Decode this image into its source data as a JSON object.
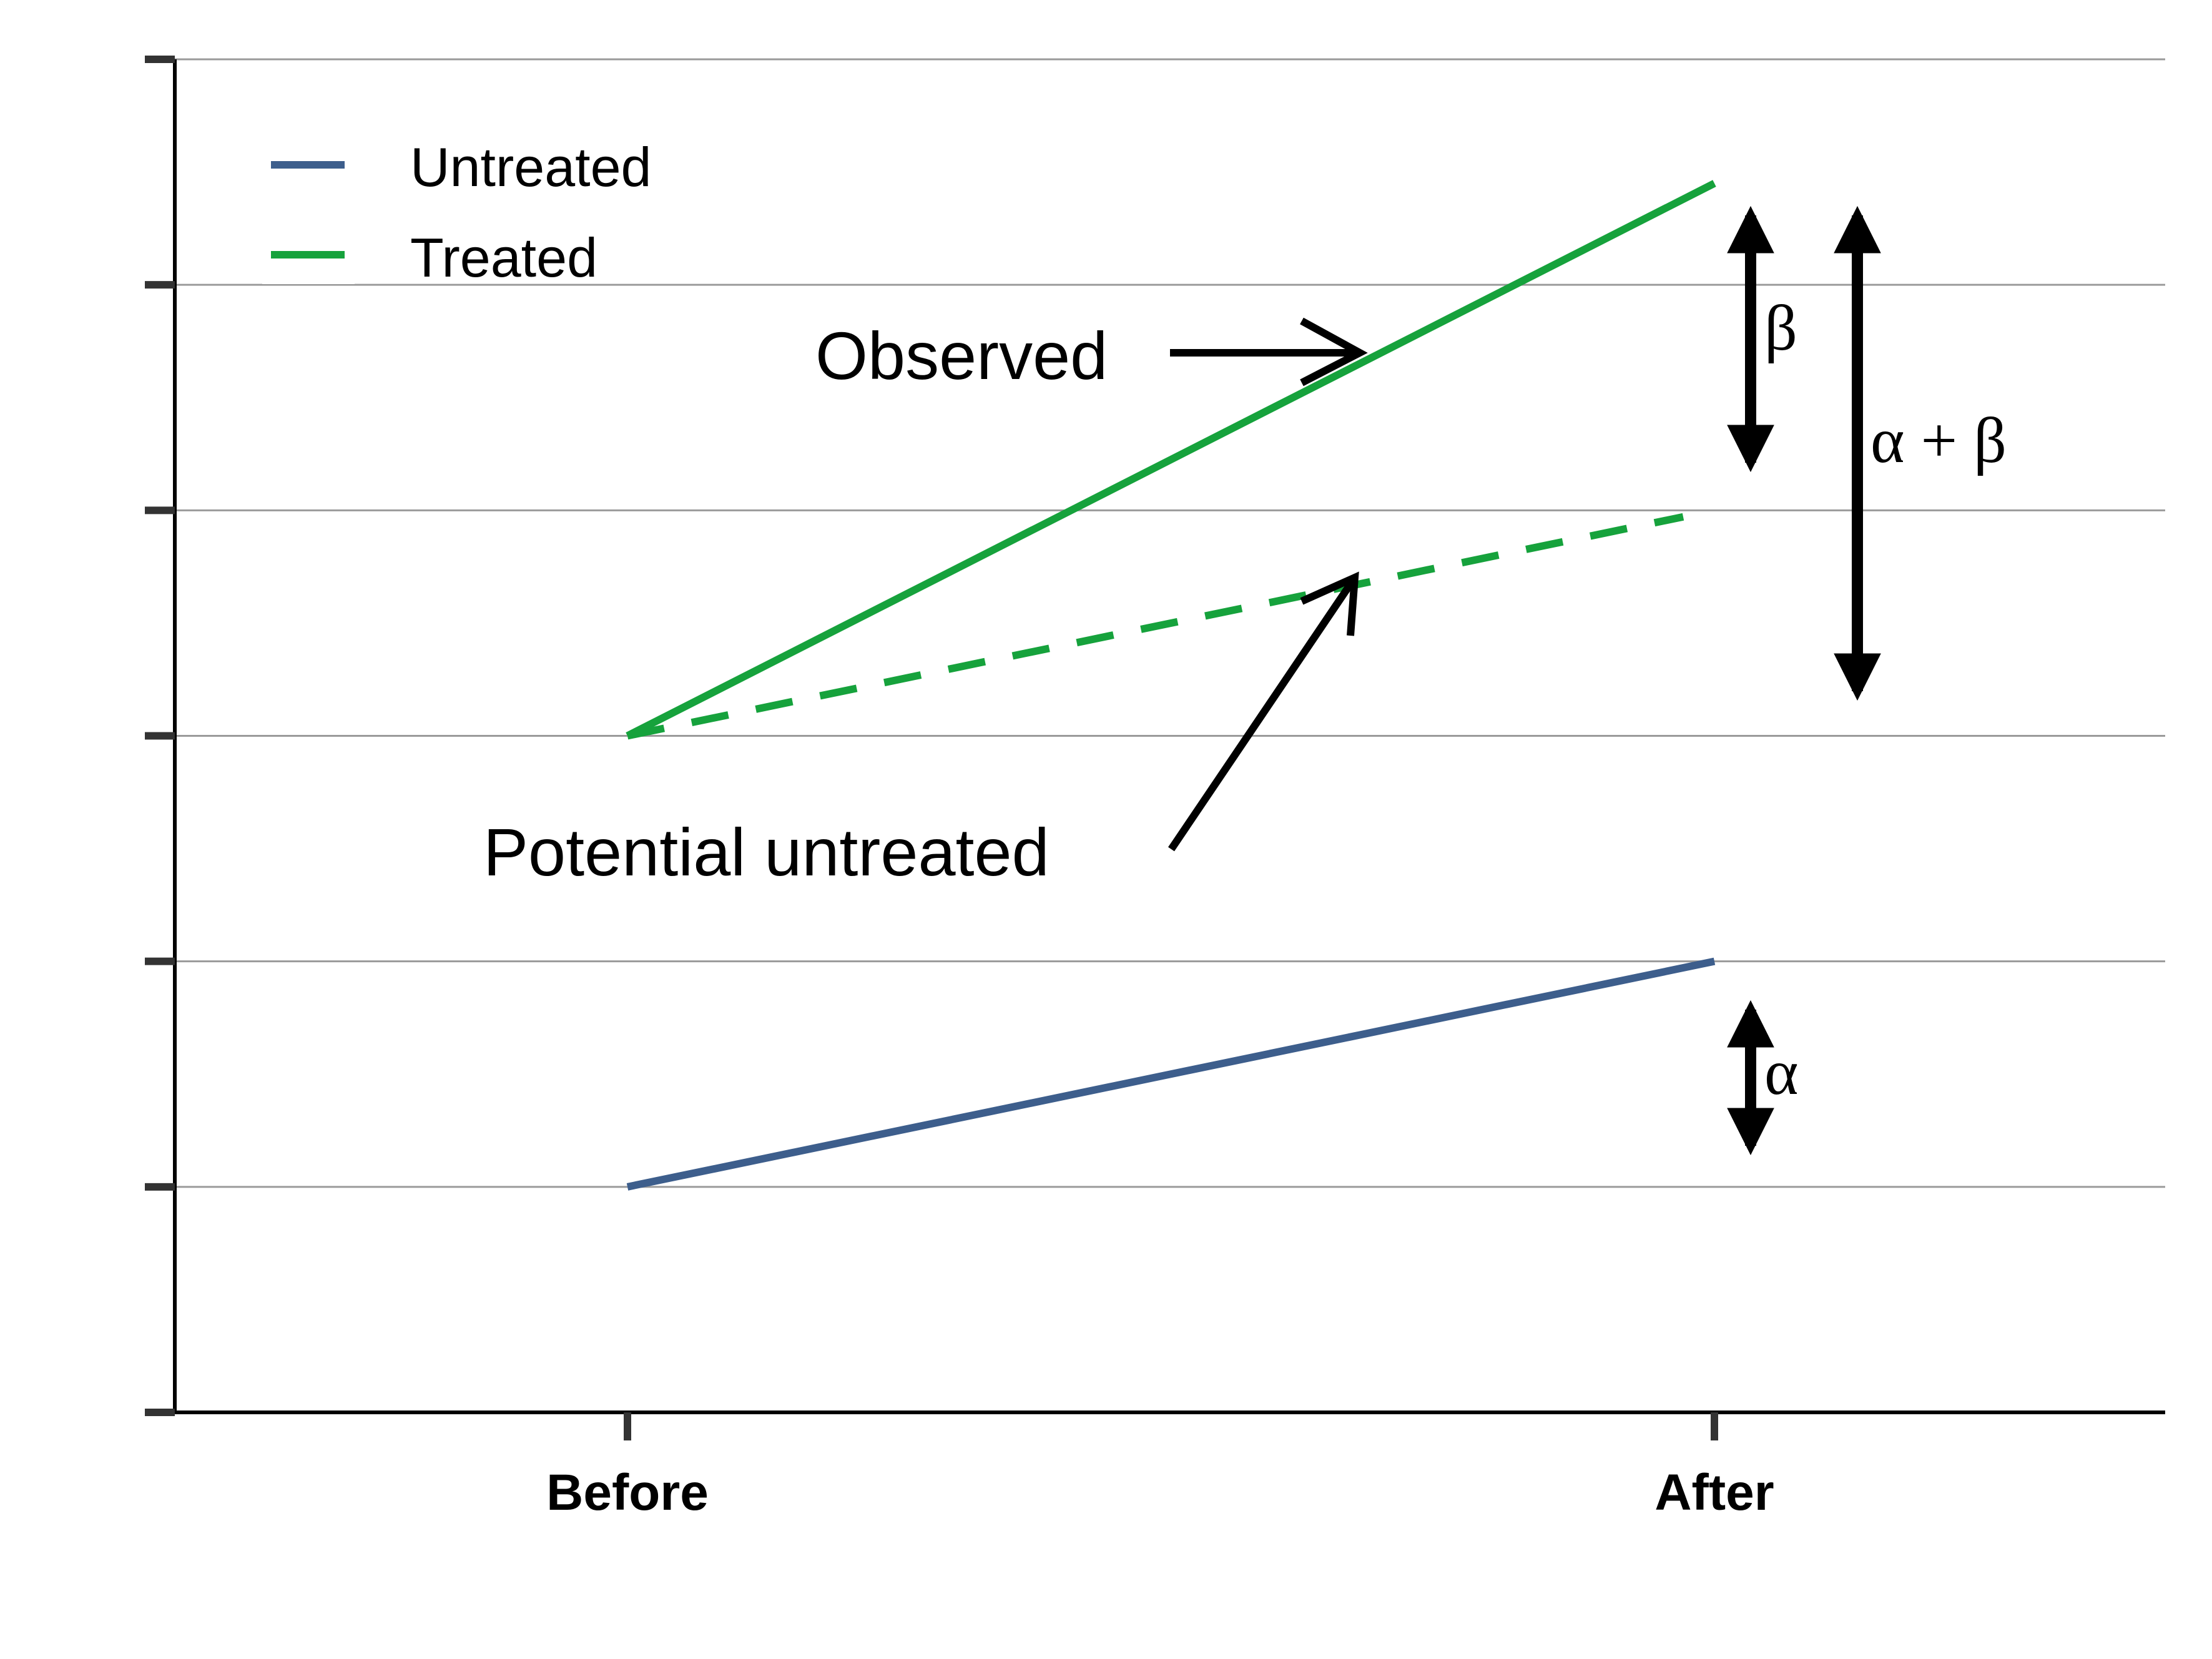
{
  "chart_data": {
    "type": "line",
    "title": "",
    "xlabel": "",
    "ylabel": "",
    "categories": [
      "Before",
      "After"
    ],
    "ylim": [
      0,
      6
    ],
    "y_gridlines": [
      1,
      2,
      3,
      4,
      5,
      6
    ],
    "grid": "horizontal",
    "legend_position": "top-left",
    "series": [
      {
        "name": "Untreated",
        "values": [
          1,
          2
        ],
        "color": "#3d5e8c",
        "dash": "solid"
      },
      {
        "name": "Treated",
        "values": [
          3,
          5.45
        ],
        "color": "#16a23c",
        "dash": "solid"
      },
      {
        "name": "",
        "values": [
          3,
          4
        ],
        "color": "#16a23c",
        "dash": "dashed"
      }
    ],
    "annotations": {
      "observed": "Observed",
      "potential": "Potential untreated",
      "alpha": "α",
      "beta": "β",
      "alpha_plus_beta": "α + β"
    }
  }
}
